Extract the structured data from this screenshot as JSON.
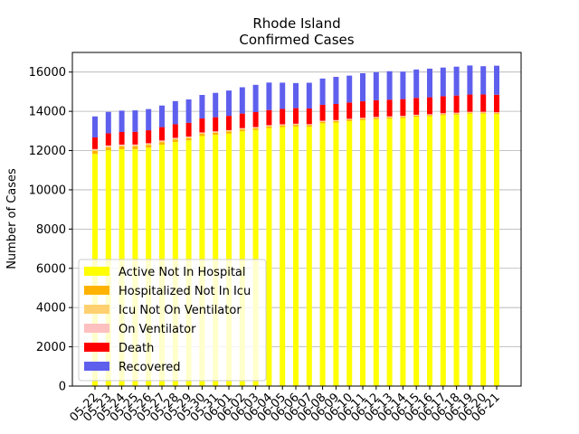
{
  "chart_data": {
    "type": "bar",
    "stacked": true,
    "title": "Rhode Island",
    "subtitle": "Confirmed Cases",
    "xlabel": "",
    "ylabel": "Number of Cases",
    "ylim": [
      0,
      17000
    ],
    "yticks": [
      0,
      2000,
      4000,
      6000,
      8000,
      10000,
      12000,
      14000,
      16000
    ],
    "grid": "y",
    "legend_position": "bottom-left",
    "categories": [
      "05-22",
      "05-23",
      "05-24",
      "05-25",
      "05-26",
      "05-27",
      "05-28",
      "05-29",
      "05-30",
      "05-31",
      "06-01",
      "06-02",
      "06-03",
      "06-04",
      "06-05",
      "06-06",
      "06-07",
      "06-08",
      "06-09",
      "06-10",
      "06-11",
      "06-12",
      "06-13",
      "06-14",
      "06-15",
      "06-16",
      "06-17",
      "06-18",
      "06-19",
      "06-20",
      "06-21"
    ],
    "series": [
      {
        "name": "Active Not In Hospital",
        "color": "#ffff00",
        "values": [
          11830,
          12020,
          12070,
          12080,
          12150,
          12300,
          12440,
          12520,
          12740,
          12800,
          12870,
          12980,
          13050,
          13150,
          13200,
          13230,
          13210,
          13390,
          13430,
          13500,
          13550,
          13600,
          13630,
          13660,
          13720,
          13750,
          13800,
          13830,
          13880,
          13880,
          13860
        ]
      },
      {
        "name": "Hospitalized Not In Icu",
        "color": "#ffb300",
        "values": [
          150,
          140,
          140,
          140,
          140,
          130,
          130,
          120,
          110,
          110,
          100,
          95,
          90,
          85,
          80,
          80,
          80,
          75,
          75,
          70,
          70,
          70,
          65,
          60,
          60,
          55,
          55,
          55,
          50,
          50,
          50
        ]
      },
      {
        "name": "Icu Not On Ventilator",
        "color": "#ffd070",
        "values": [
          60,
          60,
          55,
          55,
          50,
          50,
          45,
          45,
          45,
          40,
          40,
          40,
          35,
          35,
          35,
          35,
          30,
          30,
          30,
          30,
          30,
          28,
          28,
          28,
          25,
          25,
          25,
          25,
          25,
          25,
          25
        ]
      },
      {
        "name": "On Ventilator",
        "color": "#ffc0c0",
        "values": [
          40,
          40,
          40,
          35,
          35,
          35,
          35,
          30,
          30,
          30,
          30,
          30,
          25,
          25,
          25,
          25,
          25,
          25,
          20,
          20,
          20,
          20,
          20,
          20,
          20,
          20,
          20,
          20,
          20,
          20,
          20
        ]
      },
      {
        "name": "Death",
        "color": "#ff0000",
        "values": [
          590,
          620,
          640,
          650,
          660,
          680,
          690,
          700,
          710,
          720,
          730,
          740,
          760,
          770,
          780,
          790,
          800,
          810,
          820,
          830,
          840,
          845,
          850,
          855,
          860,
          865,
          870,
          875,
          880,
          885,
          890
        ]
      },
      {
        "name": "Recovered",
        "color": "#5f5fee",
        "values": [
          1070,
          1090,
          1090,
          1090,
          1080,
          1100,
          1180,
          1190,
          1200,
          1240,
          1290,
          1340,
          1390,
          1400,
          1340,
          1280,
          1310,
          1340,
          1380,
          1370,
          1430,
          1430,
          1450,
          1400,
          1445,
          1460,
          1460,
          1470,
          1480,
          1440,
          1480
        ]
      }
    ]
  }
}
